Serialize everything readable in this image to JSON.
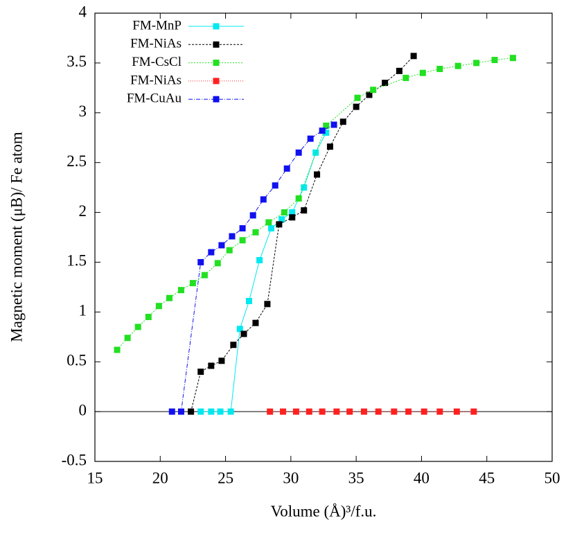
{
  "chart_data": {
    "type": "line",
    "xlabel": "Volume (Å)³/f.u.",
    "ylabel": "Magnetic moment (μB)/ Fe atom",
    "xlim": [
      15,
      50
    ],
    "xticks": [
      15,
      20,
      25,
      30,
      35,
      40,
      45,
      50
    ],
    "ylim": [
      -0.5,
      4
    ],
    "yticks": [
      -0.5,
      0,
      0.5,
      1,
      1.5,
      2,
      2.5,
      3,
      3.5,
      4
    ],
    "zero_line": true,
    "legend": "upper left",
    "series": [
      {
        "name": "FM-MnP",
        "color": "#00e8f0",
        "dash": "none",
        "x": [
          23.1,
          23.9,
          24.6,
          25.4,
          26.1,
          26.8,
          27.6,
          28.5,
          29.3,
          30.1,
          31.0,
          31.9,
          32.7
        ],
        "values": [
          0,
          0,
          0,
          0,
          0.83,
          1.11,
          1.52,
          1.84,
          1.93,
          2.0,
          2.25,
          2.6,
          2.8
        ]
      },
      {
        "name": "FM-NiAs",
        "color": "#000000",
        "dash": "3,2",
        "x": [
          22.35,
          23.1,
          23.9,
          24.7,
          25.6,
          26.4,
          27.3,
          28.2,
          29.1,
          30.1,
          31.0,
          32.0,
          33.0,
          34.0,
          35.0,
          36.0,
          37.2,
          38.3,
          39.4
        ],
        "values": [
          0,
          0.4,
          0.46,
          0.51,
          0.67,
          0.78,
          0.89,
          1.08,
          1.88,
          1.95,
          2.02,
          2.38,
          2.66,
          2.91,
          3.06,
          3.18,
          3.3,
          3.42,
          3.57
        ]
      },
      {
        "name": "FM-CsCl",
        "color": "#22e022",
        "dash": "2,2",
        "x": [
          16.7,
          17.5,
          18.3,
          19.1,
          19.9,
          20.7,
          21.6,
          22.5,
          23.4,
          24.4,
          25.3,
          26.3,
          27.3,
          28.3,
          29.5,
          30.6,
          32.7,
          35.1,
          36.3,
          38.8,
          40.1,
          41.4,
          42.8,
          44.2,
          45.6,
          47.0
        ],
        "values": [
          0.62,
          0.74,
          0.85,
          0.95,
          1.06,
          1.14,
          1.22,
          1.29,
          1.37,
          1.49,
          1.62,
          1.72,
          1.8,
          1.9,
          2.0,
          2.14,
          2.87,
          3.15,
          3.23,
          3.35,
          3.4,
          3.44,
          3.47,
          3.5,
          3.53,
          3.55
        ]
      },
      {
        "name": "FM-NiAs",
        "color": "#ff2020",
        "dash": "1,2",
        "x": [
          28.4,
          29.4,
          30.4,
          31.4,
          32.4,
          33.5,
          34.5,
          35.6,
          36.7,
          37.9,
          39.0,
          40.2,
          41.4,
          42.7,
          44.0
        ],
        "values": [
          0,
          0,
          0,
          0,
          0,
          0,
          0,
          0,
          0,
          0,
          0,
          0,
          0,
          0,
          0
        ]
      },
      {
        "name": "FM-CuAu",
        "color": "#1010f0",
        "dash": "6,2,1,2",
        "x": [
          20.9,
          21.6,
          23.1,
          23.9,
          24.7,
          25.5,
          26.3,
          27.1,
          27.9,
          28.8,
          29.7,
          30.6,
          31.5,
          32.4,
          33.3
        ],
        "values": [
          0,
          0,
          1.5,
          1.6,
          1.67,
          1.76,
          1.84,
          1.97,
          2.13,
          2.27,
          2.44,
          2.6,
          2.74,
          2.82,
          2.88
        ]
      }
    ]
  }
}
